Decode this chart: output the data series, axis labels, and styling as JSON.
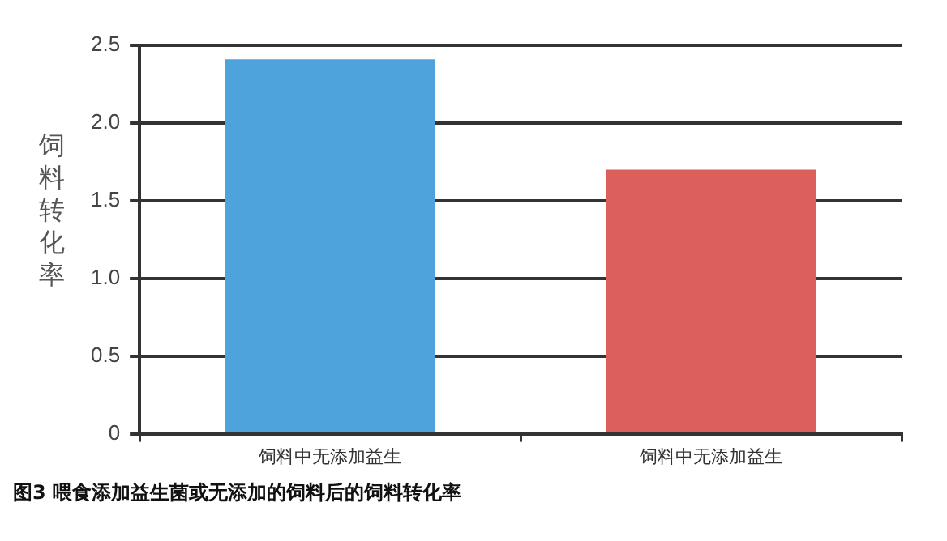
{
  "chart_data": {
    "type": "bar",
    "title": "图3 喂食添加益生菌或无添加的饲料后的饲料转化率",
    "ylabel": "饲料转化率",
    "categories": [
      "饲料中无添加益生",
      "饲料中无添加益生"
    ],
    "values": [
      2.41,
      1.7
    ],
    "colors": [
      "#4fa3dc",
      "#dd5f5c"
    ],
    "ylim": [
      0,
      2.5
    ],
    "yticks": [
      0,
      0.5,
      {
        "value": 1,
        "label": "1.0"
      },
      1.5,
      {
        "value": 2,
        "label": "2.0"
      },
      2.5
    ],
    "grid": "y",
    "legend": false
  }
}
